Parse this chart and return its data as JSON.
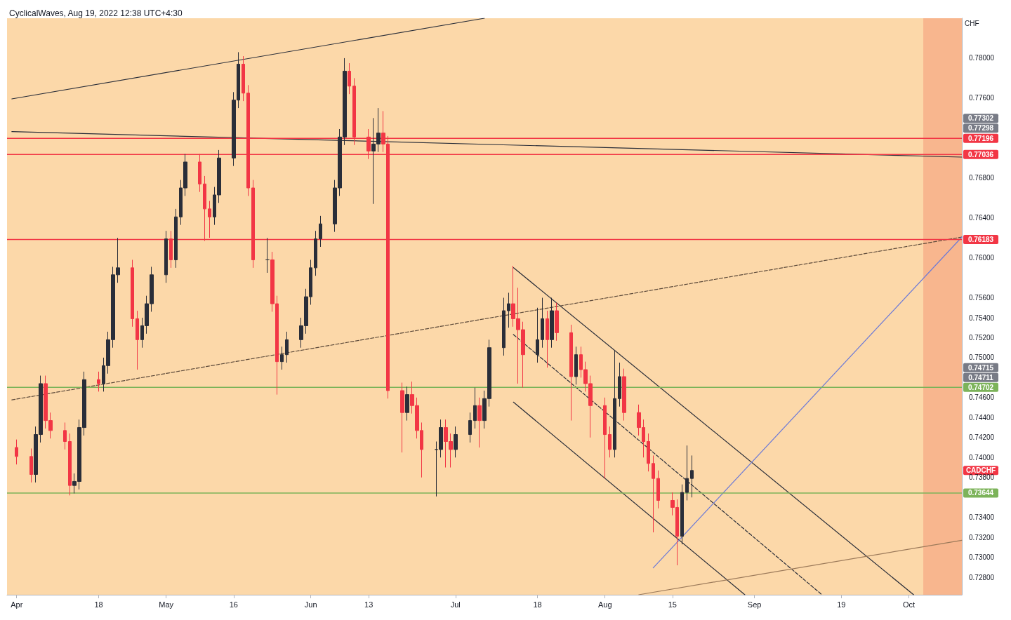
{
  "chart_data": {
    "type": "candlestick",
    "title": "CyclicalWaves, Aug 19, 2022 12:38 UTC+4:30",
    "ylabel": "CHF",
    "xlim": [
      "2022-03-30",
      "2022-10-14"
    ],
    "xticks": [
      {
        "value": "2022-04-01",
        "label": "Apr"
      },
      {
        "value": "2022-04-18",
        "label": "18"
      },
      {
        "value": "2022-05-02",
        "label": "May"
      },
      {
        "value": "2022-05-16",
        "label": "16"
      },
      {
        "value": "2022-06-01",
        "label": "Jun"
      },
      {
        "value": "2022-06-13",
        "label": "13"
      },
      {
        "value": "2022-07-01",
        "label": "Jul"
      },
      {
        "value": "2022-07-18",
        "label": "18"
      },
      {
        "value": "2022-08-01",
        "label": "Aug"
      },
      {
        "value": "2022-08-15",
        "label": "15"
      },
      {
        "value": "2022-09-01",
        "label": "Sep"
      },
      {
        "value": "2022-09-19",
        "label": "19"
      },
      {
        "value": "2022-10-03",
        "label": "Oct"
      }
    ],
    "ylim": [
      0.72625,
      0.784
    ],
    "yticks": [
      {
        "value": 0.728,
        "label": "0.72800"
      },
      {
        "value": 0.73,
        "label": "0.73000"
      },
      {
        "value": 0.732,
        "label": "0.73200"
      },
      {
        "value": 0.734,
        "label": "0.73400"
      },
      {
        "value": 0.738,
        "label": "0.73800"
      },
      {
        "value": 0.74,
        "label": "0.74000"
      },
      {
        "value": 0.742,
        "label": "0.74200"
      },
      {
        "value": 0.744,
        "label": "0.74400"
      },
      {
        "value": 0.746,
        "label": "0.74600"
      },
      {
        "value": 0.75,
        "label": "0.75000"
      },
      {
        "value": 0.752,
        "label": "0.75200"
      },
      {
        "value": 0.754,
        "label": "0.75400"
      },
      {
        "value": 0.756,
        "label": "0.75600"
      },
      {
        "value": 0.76,
        "label": "0.76000"
      },
      {
        "value": 0.764,
        "label": "0.76400"
      },
      {
        "value": 0.768,
        "label": "0.76800"
      },
      {
        "value": 0.776,
        "label": "0.77600"
      },
      {
        "value": 0.78,
        "label": "0.78000"
      }
    ],
    "colors": [
      "#f23645",
      "#f23645",
      "#2a2e39",
      "#2a2e39",
      "#f23645",
      "#f23645",
      "#f23645",
      "#f23645",
      "#2a2e39",
      "#2a2e39",
      "#2a2e39",
      "#f23645",
      "#2a2e39",
      "#2a2e39",
      "#2a2e39",
      "#2a2e39",
      "#f23645",
      "#f23645",
      "#2a2e39",
      "#2a2e39",
      "#2a2e39",
      "#2a2e39",
      "#f23645",
      "#2a2e39",
      "#2a2e39",
      "#2a2e39",
      "#f23645",
      "#f23645",
      "#f23645",
      "#2a2e39",
      "#2a2e39",
      "#2a2e39",
      "#2a2e39",
      "#f23645",
      "#f23645",
      "#f23645",
      "#2a2e39",
      "#f23645",
      "#f23645",
      "#2a2e39",
      "#2a2e39",
      "#2a2e39",
      "#2a2e39",
      "#2a2e39",
      "#2a2e39",
      "#2a2e39",
      "#2a2e39",
      "#2a2e39",
      "#2a2e39",
      "#f23645",
      "#f23645",
      "#f23645",
      "#2a2e39",
      "#2a2e39",
      "#f23645",
      "#f23645",
      "#f23645",
      "#2a2e39",
      "#f23645",
      "#f23645",
      "#f23645",
      "#2a2e39",
      "#2a2e39",
      "#f23645",
      "#f23645",
      "#2a2e39",
      "#2a2e39",
      "#2a2e39",
      "#f23645",
      "#2a2e39",
      "#2a2e39",
      "#2a2e39",
      "#2a2e39",
      "#f23645",
      "#f23645",
      "#f23645",
      "#2a2e39",
      "#2a2e39",
      "#f23645",
      "#2a2e39",
      "#f23645",
      "#f23645",
      "#2a2e39",
      "#f23645",
      "#f23645",
      "#f23645",
      "#f23645",
      "#f23645",
      "#2a2e39",
      "#2a2e39",
      "#f23645",
      "#f23645",
      "#f23645",
      "#f23645",
      "#f23645",
      "#f23645",
      "#f23645",
      "#f23645",
      "#2a2e39",
      "#2a2e39",
      "#2a2e39"
    ],
    "x": [
      "2022-04-01",
      "2022-04-04",
      "2022-04-05",
      "2022-04-06",
      "2022-04-07",
      "2022-04-08",
      "2022-04-11",
      "2022-04-12",
      "2022-04-13",
      "2022-04-14",
      "2022-04-15",
      "2022-04-18",
      "2022-04-19",
      "2022-04-20",
      "2022-04-21",
      "2022-04-22",
      "2022-04-25",
      "2022-04-26",
      "2022-04-27",
      "2022-04-28",
      "2022-04-29",
      "2022-05-02",
      "2022-05-03",
      "2022-05-04",
      "2022-05-05",
      "2022-05-06",
      "2022-05-09",
      "2022-05-10",
      "2022-05-11",
      "2022-05-12",
      "2022-05-13",
      "2022-05-16",
      "2022-05-17",
      "2022-05-18",
      "2022-05-19",
      "2022-05-20",
      "2022-05-23",
      "2022-05-24",
      "2022-05-25",
      "2022-05-26",
      "2022-05-27",
      "2022-05-30",
      "2022-05-31",
      "2022-06-01",
      "2022-06-02",
      "2022-06-03",
      "2022-06-06",
      "2022-06-07",
      "2022-06-08",
      "2022-06-09",
      "2022-06-10",
      "2022-06-13",
      "2022-06-14",
      "2022-06-15",
      "2022-06-16",
      "2022-06-17",
      "2022-06-20",
      "2022-06-21",
      "2022-06-22",
      "2022-06-23",
      "2022-06-24",
      "2022-06-27",
      "2022-06-28",
      "2022-06-29",
      "2022-06-30",
      "2022-07-01",
      "2022-07-04",
      "2022-07-05",
      "2022-07-06",
      "2022-07-07",
      "2022-07-08",
      "2022-07-11",
      "2022-07-12",
      "2022-07-13",
      "2022-07-14",
      "2022-07-15",
      "2022-07-18",
      "2022-07-19",
      "2022-07-20",
      "2022-07-21",
      "2022-07-22",
      "2022-07-25",
      "2022-07-26",
      "2022-07-27",
      "2022-07-28",
      "2022-07-29",
      "2022-08-01",
      "2022-08-02",
      "2022-08-03",
      "2022-08-04",
      "2022-08-05",
      "2022-08-08",
      "2022-08-09",
      "2022-08-10",
      "2022-08-11",
      "2022-08-12",
      "2022-08-15",
      "2022-08-16",
      "2022-08-17",
      "2022-08-18",
      "2022-08-19"
    ],
    "ohlc": [
      [
        0.741,
        0.7418,
        0.7393,
        0.7401
      ],
      [
        0.7401,
        0.7409,
        0.7375,
        0.7383
      ],
      [
        0.7383,
        0.7431,
        0.7375,
        0.7423
      ],
      [
        0.7423,
        0.7482,
        0.7415,
        0.7474
      ],
      [
        0.7474,
        0.7482,
        0.7429,
        0.7437
      ],
      [
        0.7437,
        0.7445,
        0.7419,
        0.7427
      ],
      [
        0.7427,
        0.7435,
        0.7408,
        0.7416
      ],
      [
        0.7416,
        0.7424,
        0.7362,
        0.7372
      ],
      [
        0.7372,
        0.7384,
        0.7364,
        0.7376
      ],
      [
        0.7376,
        0.7438,
        0.7368,
        0.743
      ],
      [
        0.743,
        0.7486,
        0.7422,
        0.7478
      ],
      [
        0.7478,
        0.7486,
        0.7466,
        0.7474
      ],
      [
        0.7474,
        0.75,
        0.7466,
        0.7492
      ],
      [
        0.7492,
        0.7526,
        0.7484,
        0.7518
      ],
      [
        0.7518,
        0.7591,
        0.751,
        0.7583
      ],
      [
        0.7583,
        0.762,
        0.7575,
        0.759
      ],
      [
        0.759,
        0.7598,
        0.7531,
        0.7539
      ],
      [
        0.7539,
        0.7547,
        0.7488,
        0.7518
      ],
      [
        0.7518,
        0.754,
        0.751,
        0.7532
      ],
      [
        0.7532,
        0.7562,
        0.7524,
        0.7554
      ],
      [
        0.7554,
        0.7591,
        0.7546,
        0.7583
      ],
      [
        0.7583,
        0.7627,
        0.7575,
        0.7619
      ],
      [
        0.7619,
        0.7627,
        0.759,
        0.7598
      ],
      [
        0.7598,
        0.7649,
        0.759,
        0.7641
      ],
      [
        0.7641,
        0.7678,
        0.7633,
        0.767
      ],
      [
        0.767,
        0.7704,
        0.7662,
        0.7696
      ],
      [
        0.7696,
        0.7704,
        0.7666,
        0.7674
      ],
      [
        0.7674,
        0.7682,
        0.7617,
        0.7649
      ],
      [
        0.7649,
        0.7657,
        0.762,
        0.7641
      ],
      [
        0.7641,
        0.7671,
        0.7633,
        0.7663
      ],
      [
        0.7663,
        0.7708,
        0.7655,
        0.77
      ],
      [
        0.77,
        0.7766,
        0.7692,
        0.7758
      ],
      [
        0.7758,
        0.7806,
        0.775,
        0.7794
      ],
      [
        0.7794,
        0.7802,
        0.7757,
        0.7765
      ],
      [
        0.7765,
        0.7773,
        0.7662,
        0.767
      ],
      [
        0.767,
        0.7678,
        0.759,
        0.7598
      ],
      [
        0.7598,
        0.762,
        0.7585,
        0.7598
      ],
      [
        0.7598,
        0.7606,
        0.7546,
        0.7554
      ],
      [
        0.7554,
        0.7562,
        0.7463,
        0.7496
      ],
      [
        0.7496,
        0.7511,
        0.7488,
        0.7503
      ],
      [
        0.7503,
        0.7526,
        0.7495,
        0.7518
      ],
      [
        0.7518,
        0.754,
        0.751,
        0.7532
      ],
      [
        0.7532,
        0.7569,
        0.7524,
        0.7561
      ],
      [
        0.7561,
        0.7598,
        0.7553,
        0.759
      ],
      [
        0.759,
        0.7627,
        0.7582,
        0.7619
      ],
      [
        0.7619,
        0.7642,
        0.7611,
        0.7634
      ],
      [
        0.7634,
        0.7678,
        0.7626,
        0.767
      ],
      [
        0.767,
        0.7729,
        0.7662,
        0.7721
      ],
      [
        0.7721,
        0.78,
        0.7713,
        0.7787
      ],
      [
        0.7787,
        0.7795,
        0.7764,
        0.7772
      ],
      [
        0.7772,
        0.778,
        0.7713,
        0.7721
      ],
      [
        0.7721,
        0.7729,
        0.7699,
        0.7707
      ],
      [
        0.7707,
        0.774,
        0.7654,
        0.7714
      ],
      [
        0.7714,
        0.775,
        0.7706,
        0.7725
      ],
      [
        0.7725,
        0.7747,
        0.7706,
        0.7714
      ],
      [
        0.7714,
        0.7722,
        0.7459,
        0.7467
      ],
      [
        0.7467,
        0.7475,
        0.7405,
        0.7445
      ],
      [
        0.7445,
        0.7471,
        0.7437,
        0.7463
      ],
      [
        0.7463,
        0.7476,
        0.7444,
        0.7452
      ],
      [
        0.7452,
        0.746,
        0.7419,
        0.7427
      ],
      [
        0.7427,
        0.7435,
        0.738,
        0.7408
      ],
      [
        0.7408,
        0.7416,
        0.7361,
        0.7408
      ],
      [
        0.7408,
        0.7438,
        0.74,
        0.743
      ],
      [
        0.743,
        0.7438,
        0.739,
        0.7416
      ],
      [
        0.7416,
        0.7424,
        0.739,
        0.7408
      ],
      [
        0.7408,
        0.7431,
        0.74,
        0.7423
      ],
      [
        0.7423,
        0.7445,
        0.7415,
        0.7437
      ],
      [
        0.7437,
        0.747,
        0.7429,
        0.7452
      ],
      [
        0.7452,
        0.746,
        0.741,
        0.7437
      ],
      [
        0.7437,
        0.7467,
        0.7429,
        0.7459
      ],
      [
        0.7459,
        0.7518,
        0.7451,
        0.751
      ],
      [
        0.751,
        0.756,
        0.7502,
        0.7547
      ],
      [
        0.7547,
        0.7565,
        0.753,
        0.7554
      ],
      [
        0.7554,
        0.7592,
        0.7531,
        0.7539
      ],
      [
        0.7539,
        0.757,
        0.7474,
        0.7528
      ],
      [
        0.7528,
        0.7536,
        0.747,
        0.7503
      ],
      [
        0.7503,
        0.755,
        0.7495,
        0.7518
      ],
      [
        0.7518,
        0.756,
        0.751,
        0.7539
      ],
      [
        0.7539,
        0.7547,
        0.749,
        0.7518
      ],
      [
        0.7518,
        0.756,
        0.751,
        0.7547
      ],
      [
        0.7547,
        0.7555,
        0.7517,
        0.7525
      ],
      [
        0.7525,
        0.7533,
        0.7437,
        0.7481
      ],
      [
        0.7481,
        0.7511,
        0.7473,
        0.7503
      ],
      [
        0.7503,
        0.7511,
        0.748,
        0.7488
      ],
      [
        0.7488,
        0.7496,
        0.7466,
        0.7474
      ],
      [
        0.7474,
        0.7482,
        0.742,
        0.7452
      ],
      [
        0.7452,
        0.746,
        0.7379,
        0.7423
      ],
      [
        0.7423,
        0.7431,
        0.74,
        0.7408
      ],
      [
        0.7408,
        0.7507,
        0.74,
        0.7459
      ],
      [
        0.7459,
        0.7495,
        0.7451,
        0.7481
      ],
      [
        0.7481,
        0.7489,
        0.7437,
        0.7445
      ],
      [
        0.7445,
        0.7453,
        0.7422,
        0.743
      ],
      [
        0.743,
        0.7438,
        0.74,
        0.7416
      ],
      [
        0.7416,
        0.7424,
        0.7386,
        0.7394
      ],
      [
        0.7394,
        0.7402,
        0.7325,
        0.7379
      ],
      [
        0.7379,
        0.7387,
        0.7349,
        0.7357
      ],
      [
        0.7357,
        0.7365,
        0.7342,
        0.735
      ],
      [
        0.735,
        0.7358,
        0.7292,
        0.7321
      ],
      [
        0.7321,
        0.7373,
        0.7313,
        0.7365
      ],
      [
        0.7365,
        0.7412,
        0.7357,
        0.7379
      ],
      [
        0.7379,
        0.7402,
        0.736,
        0.7387
      ]
    ],
    "series": [
      {
        "type": "line",
        "x": [
          "2022-03-31",
          "2022-07-07"
        ],
        "values": [
          0.77592,
          0.784
        ],
        "color": "#2a2e39",
        "line_style": "solid"
      },
      {
        "type": "line",
        "x": [
          "2022-03-31",
          "2022-10-14"
        ],
        "values": [
          0.77264,
          0.77009
        ],
        "color": "#2a2e39",
        "line_style": "solid"
      },
      {
        "type": "line",
        "x": [
          "2022-03-31",
          "2022-10-14"
        ],
        "values": [
          0.74577,
          0.76208
        ],
        "color": "#5d4a3a",
        "line_style": "dashed"
      },
      {
        "type": "line",
        "x": [
          "2022-07-13",
          "2022-10-04"
        ],
        "values": [
          0.75902,
          0.72625
        ],
        "color": "#2a2e39",
        "line_style": "solid"
      },
      {
        "type": "line",
        "x": [
          "2022-07-13",
          "2022-08-30"
        ],
        "values": [
          0.74555,
          0.72625
        ],
        "color": "#2a2e39",
        "line_style": "solid"
      },
      {
        "type": "line",
        "x": [
          "2022-07-13",
          "2022-09-15"
        ],
        "values": [
          0.75232,
          0.72625
        ],
        "color": "#2a2e39",
        "line_style": "dashed"
      },
      {
        "type": "line",
        "x": [
          "2022-08-11",
          "2022-10-14"
        ],
        "values": [
          0.72894,
          0.76208
        ],
        "color": "#6a79d8",
        "line_style": "solid"
      },
      {
        "type": "line",
        "x": [
          "2022-08-08",
          "2022-10-14"
        ],
        "values": [
          0.72625,
          0.73171
        ],
        "color": "#9c7a5a",
        "line_style": "solid"
      }
    ],
    "ref_lines": [
      {
        "axis": "y",
        "value": 0.77196,
        "label": "0.77196",
        "color": "#f23645"
      },
      {
        "axis": "y",
        "value": 0.77036,
        "label": "0.77036",
        "color": "#f23645"
      },
      {
        "axis": "y",
        "value": 0.76183,
        "label": "0.76183",
        "color": "#f23645"
      },
      {
        "axis": "y",
        "value": 0.74702,
        "label": "0.74702",
        "color": "#7cb35a"
      },
      {
        "axis": "y",
        "value": 0.73644,
        "label": "0.73644",
        "color": "#7cb35a"
      }
    ],
    "bands": [
      {
        "axis": "x",
        "from": "2022-10-06",
        "to": "2022-10-14",
        "color": "#f7b08a"
      }
    ],
    "annotations": [
      "0.77302",
      "0.77298",
      "0.74715",
      "0.74711",
      "CADCHF"
    ]
  }
}
